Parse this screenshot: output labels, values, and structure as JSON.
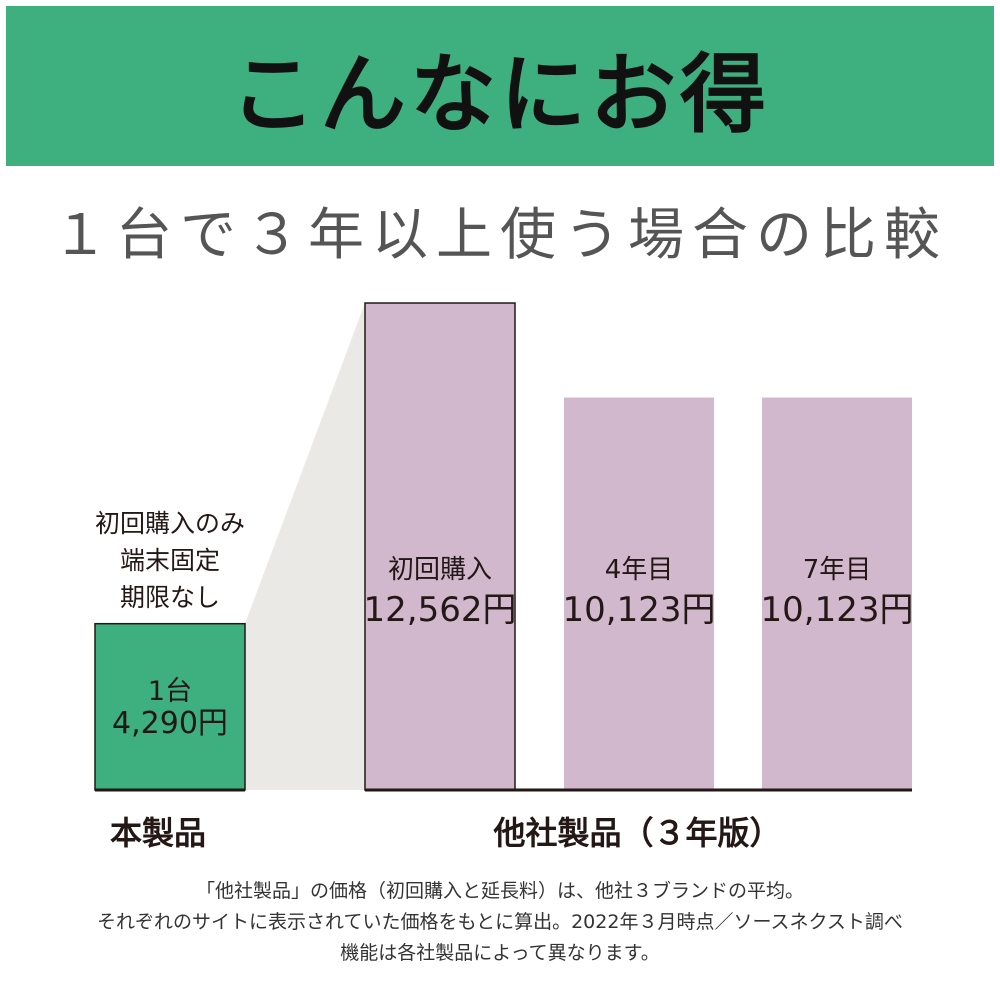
{
  "header": {
    "title": "こんなにお得",
    "bg_color": "#3eaf7f"
  },
  "subtitle": "１台で３年以上使う場合の比較",
  "product_note": [
    "初回購入のみ",
    "端末固定",
    "期限なし"
  ],
  "group_labels": {
    "ours": "本製品",
    "others": "他社製品（３年版）"
  },
  "footnote": [
    "「他社製品」の価格（初回購入と延長料）は、他社３ブランドの平均。",
    "それぞれのサイトに表示されていた価格をもとに算出。2022年３月時点／ソースネクスト調べ",
    "機能は各社製品によって異なります。"
  ],
  "colors": {
    "ours": "#3eaf7f",
    "others": "#d1b8cd",
    "connector": "#ebe9e6"
  },
  "chart_data": {
    "type": "bar",
    "unit": "円",
    "bars": [
      {
        "group": "本製品",
        "name": "1台",
        "value": 4290,
        "value_label": "4,290円"
      },
      {
        "group": "他社製品（３年版）",
        "name": "初回購入",
        "value": 12562,
        "value_label": "12,562円"
      },
      {
        "group": "他社製品（３年版）",
        "name": "4年目",
        "value": 10123,
        "value_label": "10,123円"
      },
      {
        "group": "他社製品（３年版）",
        "name": "7年目",
        "value": 10123,
        "value_label": "10,123円"
      }
    ]
  }
}
